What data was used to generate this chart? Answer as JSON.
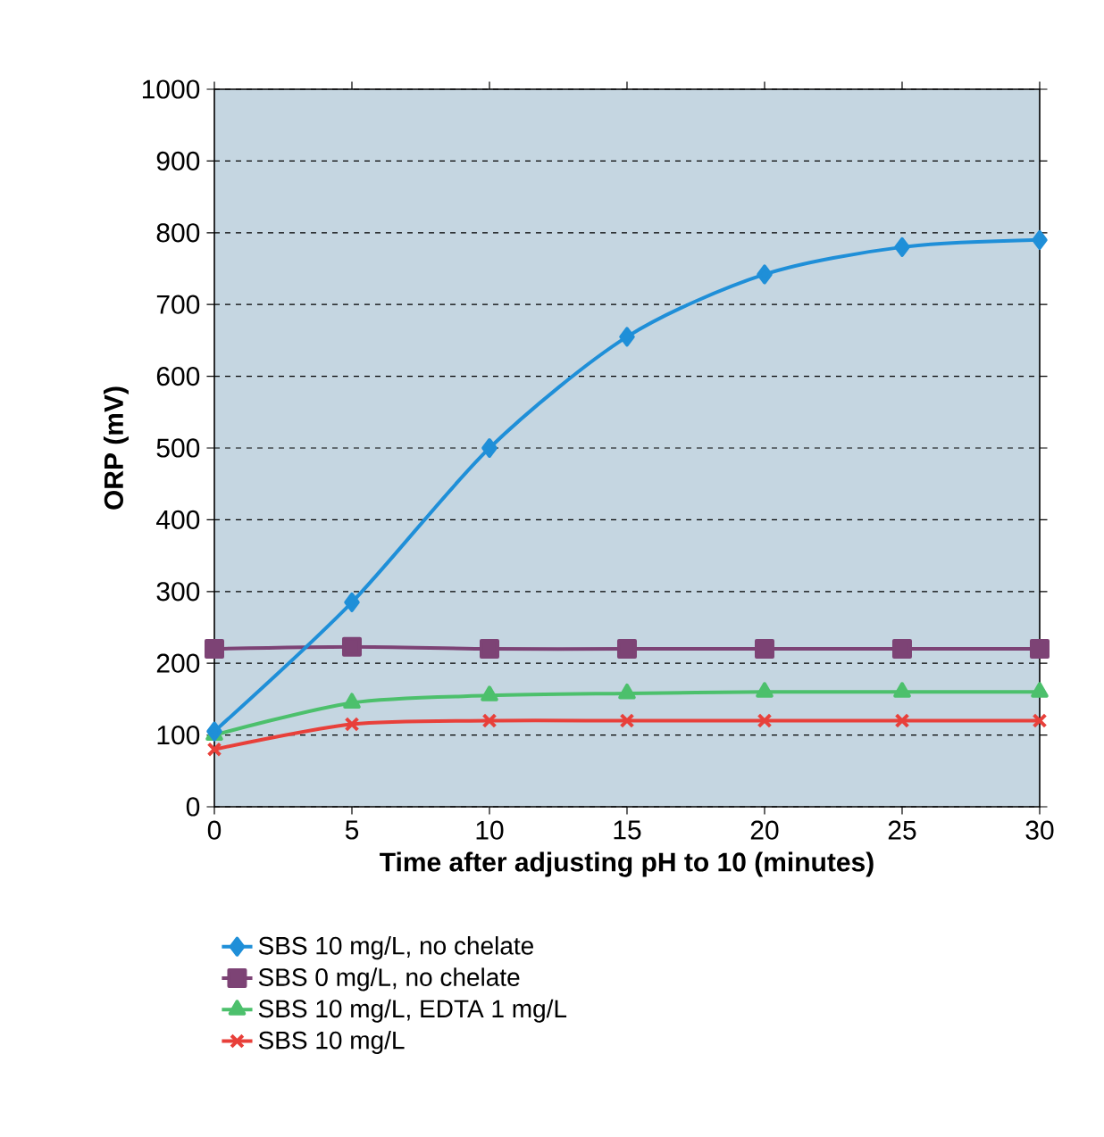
{
  "chart_data": {
    "type": "line",
    "xlabel": "Time after adjusting pH to 10 (minutes)",
    "ylabel": "ORP (mV)",
    "x": [
      0,
      5,
      10,
      15,
      20,
      25,
      30
    ],
    "xlim": [
      0,
      30
    ],
    "xticks": [
      0,
      5,
      10,
      15,
      20,
      25,
      30
    ],
    "ylim": [
      0,
      1000
    ],
    "yticks": [
      0,
      100,
      200,
      300,
      400,
      500,
      600,
      700,
      800,
      900,
      1000
    ],
    "grid": "y",
    "legend": "bottom",
    "line_style": "solid",
    "series": [
      {
        "name": "SBS 10 mg/L, no chelate",
        "color": "#1f8fd8",
        "marker": "diamond",
        "values": [
          105,
          285,
          500,
          655,
          742,
          780,
          790
        ]
      },
      {
        "name": "SBS 0 mg/L, no chelate",
        "color": "#7d4375",
        "marker": "square",
        "values": [
          220,
          223,
          220,
          220,
          220,
          220,
          220
        ]
      },
      {
        "name": "SBS 10 mg/L, EDTA 1 mg/L",
        "color": "#4cc06c",
        "marker": "triangle",
        "values": [
          100,
          145,
          155,
          158,
          160,
          160,
          160
        ]
      },
      {
        "name": "SBS 10 mg/L",
        "color": "#e8403a",
        "marker": "cross",
        "values": [
          80,
          115,
          120,
          120,
          120,
          120,
          120
        ]
      }
    ]
  }
}
